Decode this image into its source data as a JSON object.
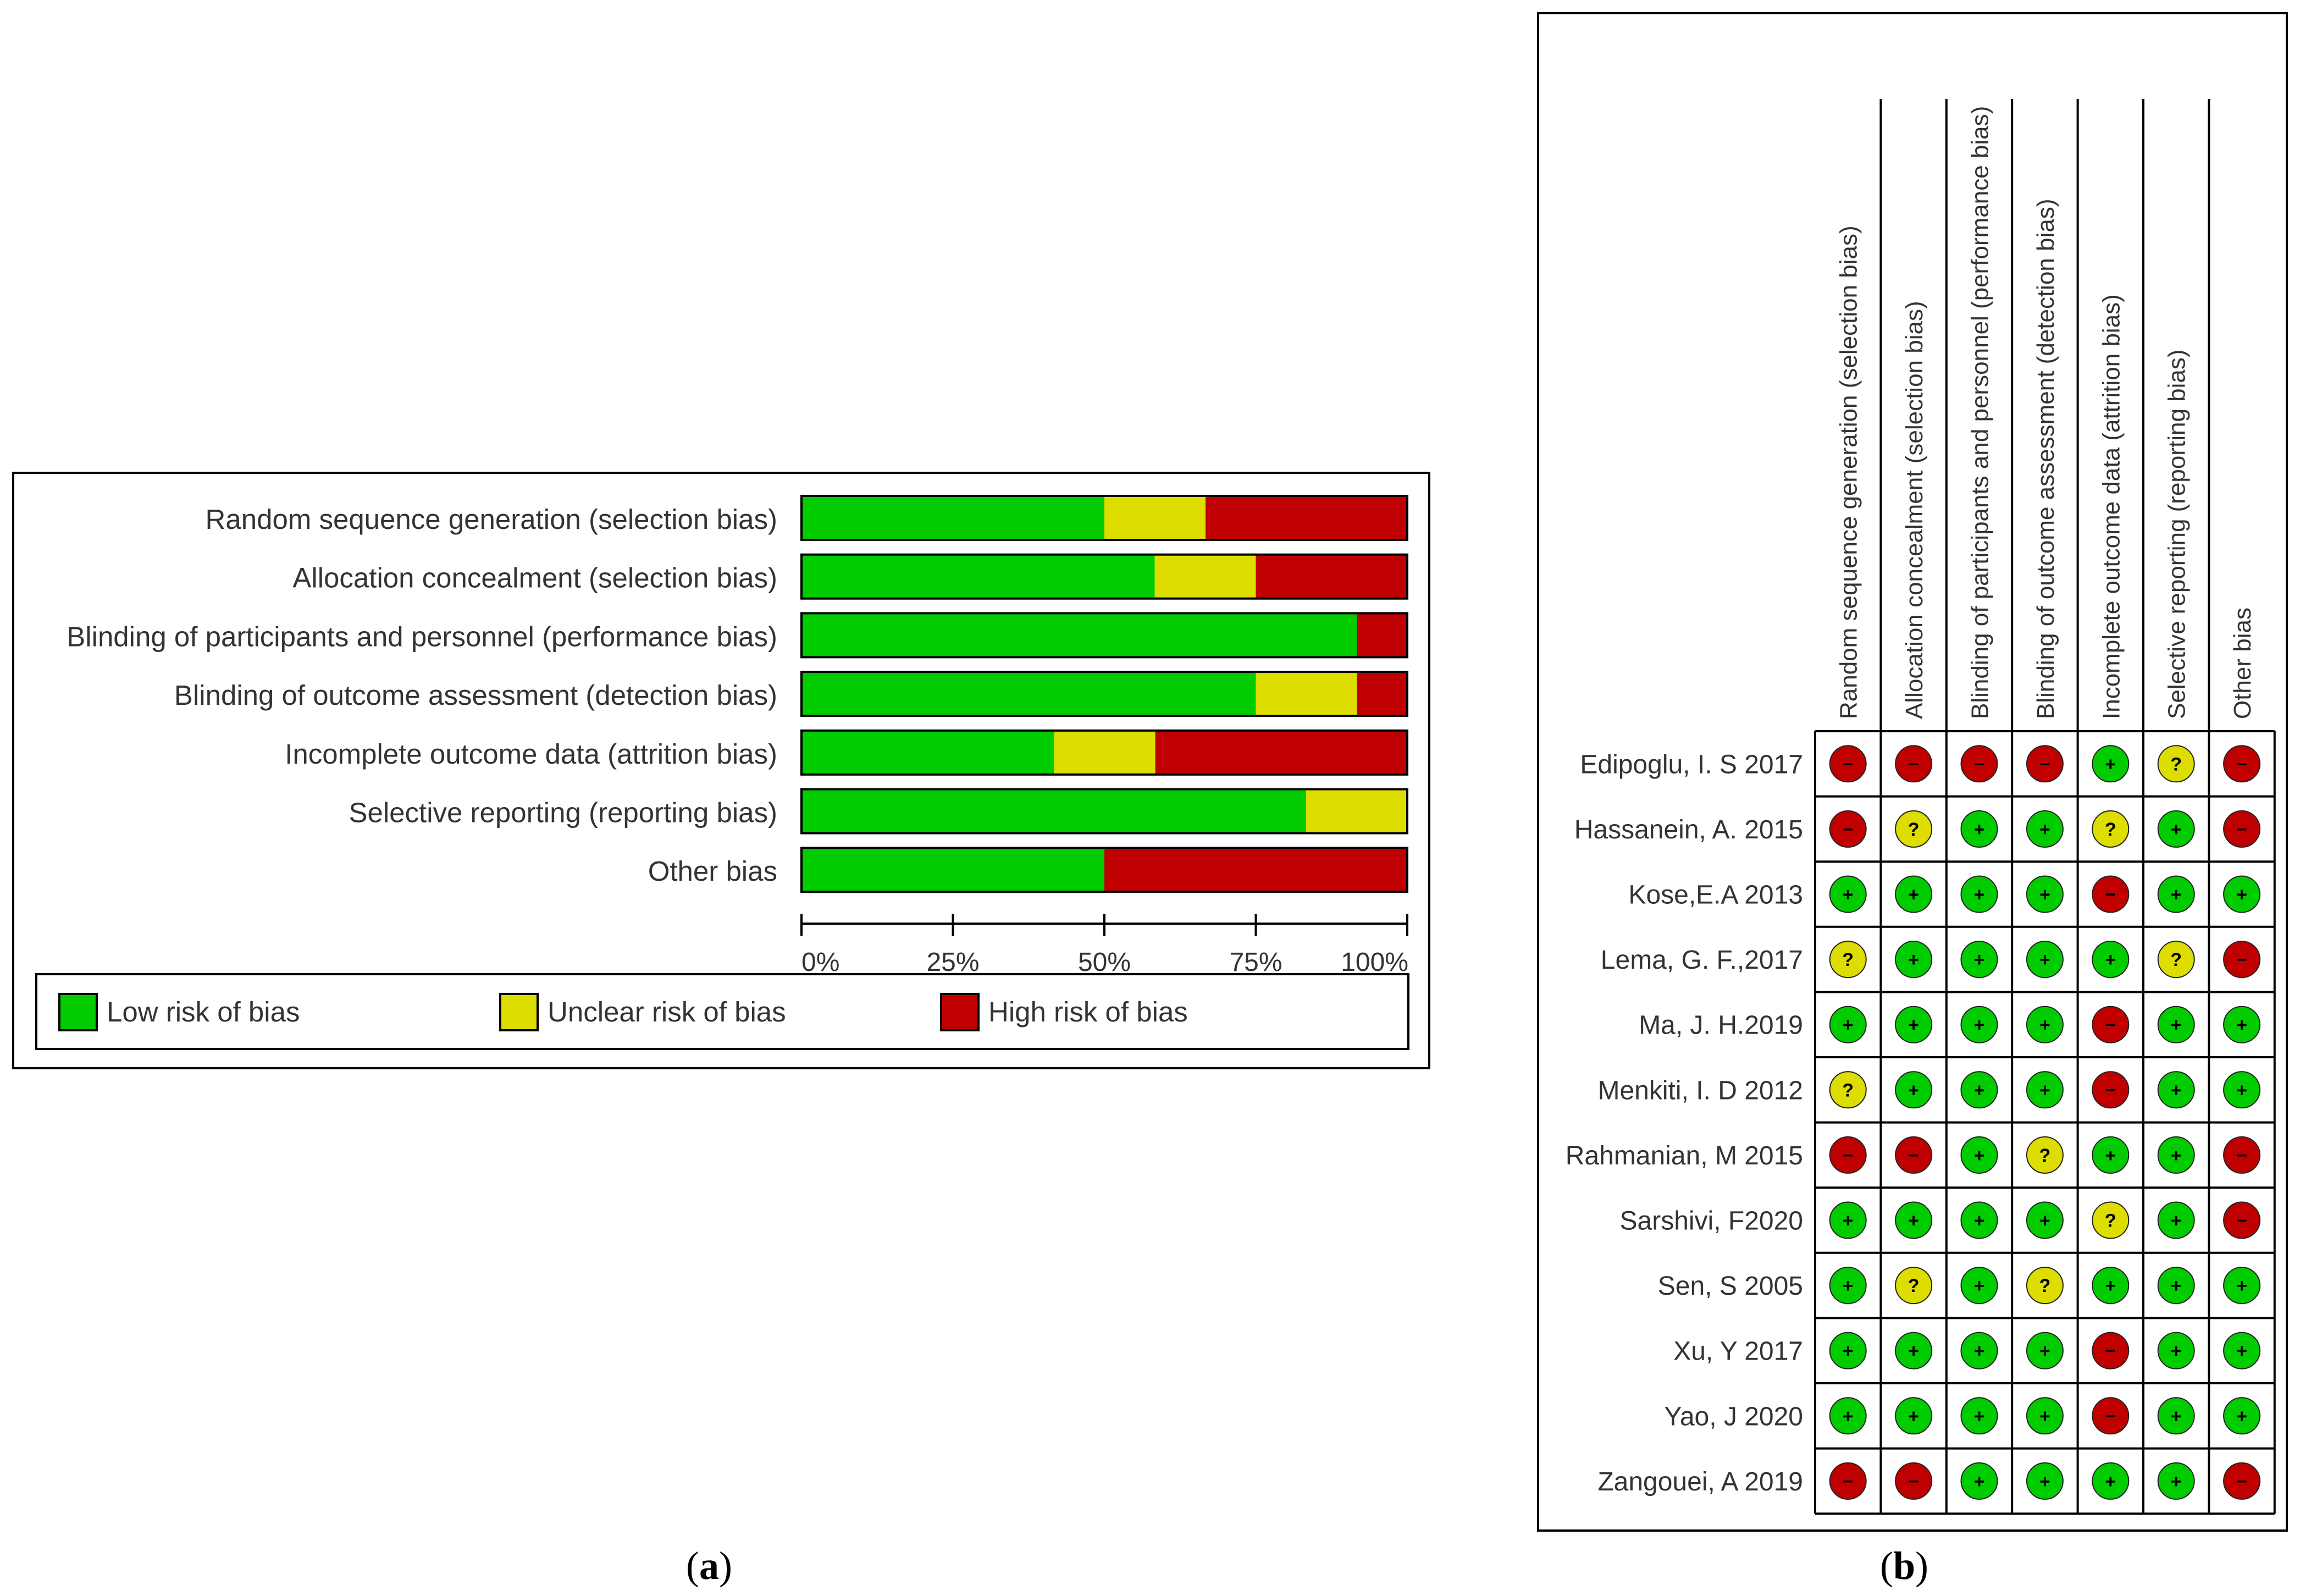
{
  "chart_data": [
    {
      "type": "bar",
      "subtype": "stacked-horizontal-100",
      "panel_label": "a",
      "categories": [
        "Random sequence generation (selection bias)",
        "Allocation concealment (selection bias)",
        "Blinding of participants and personnel (performance bias)",
        "Blinding of outcome assessment (detection bias)",
        "Incomplete outcome data (attrition bias)",
        "Selective reporting (reporting bias)",
        "Other bias"
      ],
      "series": [
        {
          "name": "Low risk of bias",
          "color": "#00cc00",
          "values": [
            50,
            58.3,
            91.7,
            75,
            41.7,
            83.3,
            50
          ]
        },
        {
          "name": "Unclear risk of bias",
          "color": "#dddd00",
          "values": [
            16.7,
            16.7,
            0,
            16.7,
            16.7,
            16.7,
            0
          ]
        },
        {
          "name": "High risk of bias",
          "color": "#c00000",
          "values": [
            33.3,
            25,
            8.3,
            8.3,
            41.7,
            0,
            50
          ]
        }
      ],
      "xlim": [
        0,
        100
      ],
      "xticks": [
        "0%",
        "25%",
        "50%",
        "75%",
        "100%"
      ],
      "legend": [
        "Low risk of bias",
        "Unclear risk of bias",
        "High risk of bias"
      ],
      "legend_position": "bottom"
    },
    {
      "type": "table",
      "subtype": "risk-of-bias-summary",
      "panel_label": "b",
      "columns": [
        "Random sequence generation (selection bias)",
        "Allocation concealment (selection bias)",
        "Blinding of participants and personnel (performance bias)",
        "Blinding of outcome assessment (detection bias)",
        "Incomplete outcome data (attrition bias)",
        "Selective reporting (reporting bias)",
        "Other bias"
      ],
      "studies": [
        "Edipoglu, I. S 2017",
        "Hassanein, A.  2015",
        "Kose,E.A 2013",
        "Lema, G. F.,2017",
        "Ma, J. H.2019",
        "Menkiti, I. D 2012",
        "Rahmanian, M 2015",
        "Sarshivi, F2020",
        "Sen, S 2005",
        "Xu, Y 2017",
        "Yao, J 2020",
        "Zangouei, A 2019"
      ],
      "judgements": [
        [
          "high",
          "high",
          "high",
          "high",
          "low",
          "unclear",
          "high"
        ],
        [
          "high",
          "unclear",
          "low",
          "low",
          "unclear",
          "low",
          "high"
        ],
        [
          "low",
          "low",
          "low",
          "low",
          "high",
          "low",
          "low"
        ],
        [
          "unclear",
          "low",
          "low",
          "low",
          "low",
          "unclear",
          "high"
        ],
        [
          "low",
          "low",
          "low",
          "low",
          "high",
          "low",
          "low"
        ],
        [
          "unclear",
          "low",
          "low",
          "low",
          "high",
          "low",
          "low"
        ],
        [
          "high",
          "high",
          "low",
          "unclear",
          "low",
          "low",
          "high"
        ],
        [
          "low",
          "low",
          "low",
          "low",
          "unclear",
          "low",
          "high"
        ],
        [
          "low",
          "unclear",
          "low",
          "unclear",
          "low",
          "low",
          "low"
        ],
        [
          "low",
          "low",
          "low",
          "low",
          "high",
          "low",
          "low"
        ],
        [
          "low",
          "low",
          "low",
          "low",
          "high",
          "low",
          "low"
        ],
        [
          "high",
          "high",
          "low",
          "low",
          "low",
          "low",
          "high"
        ]
      ],
      "symbols": {
        "low": "+",
        "unclear": "?",
        "high": "−"
      },
      "colors": {
        "low": "#00cc00",
        "unclear": "#dddd00",
        "high": "#c00000"
      }
    }
  ],
  "captions": {
    "a": "a",
    "b": "b"
  }
}
